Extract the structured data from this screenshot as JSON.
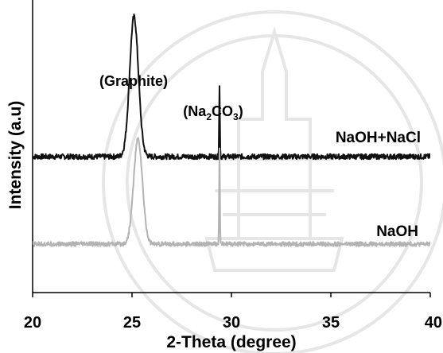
{
  "chart_data": {
    "type": "line",
    "title": "",
    "xlabel": "2-Theta (degree)",
    "ylabel": "Intensity (a.u)",
    "xlim": [
      20,
      40
    ],
    "x_ticks": [
      "20",
      "25",
      "30",
      "35",
      "40"
    ],
    "y_ticks_shown": false,
    "grid": false,
    "legend": "none",
    "series": [
      {
        "name": "NaOH+NaCl",
        "color": "#111111",
        "baseline": 1.0,
        "noise": 0.03,
        "peaks": [
          {
            "x": 25.1,
            "height": 1.6,
            "width": 0.22
          },
          {
            "x": 29.4,
            "height": 0.8,
            "width": 0.02
          }
        ]
      },
      {
        "name": "NaOH",
        "color": "#b3b3b3",
        "baseline": 0.0,
        "noise": 0.025,
        "peaks": [
          {
            "x": 25.3,
            "height": 1.2,
            "width": 0.22
          },
          {
            "x": 29.4,
            "height": 1.1,
            "width": 0.02
          }
        ]
      }
    ],
    "annotations": [
      {
        "text": "(Graphite)",
        "x": 25.0
      },
      {
        "text_main": "(Na",
        "sub1": "2",
        "text_mid": "CO",
        "sub2": "3",
        "text_end": ")",
        "x": 29.4
      }
    ]
  }
}
